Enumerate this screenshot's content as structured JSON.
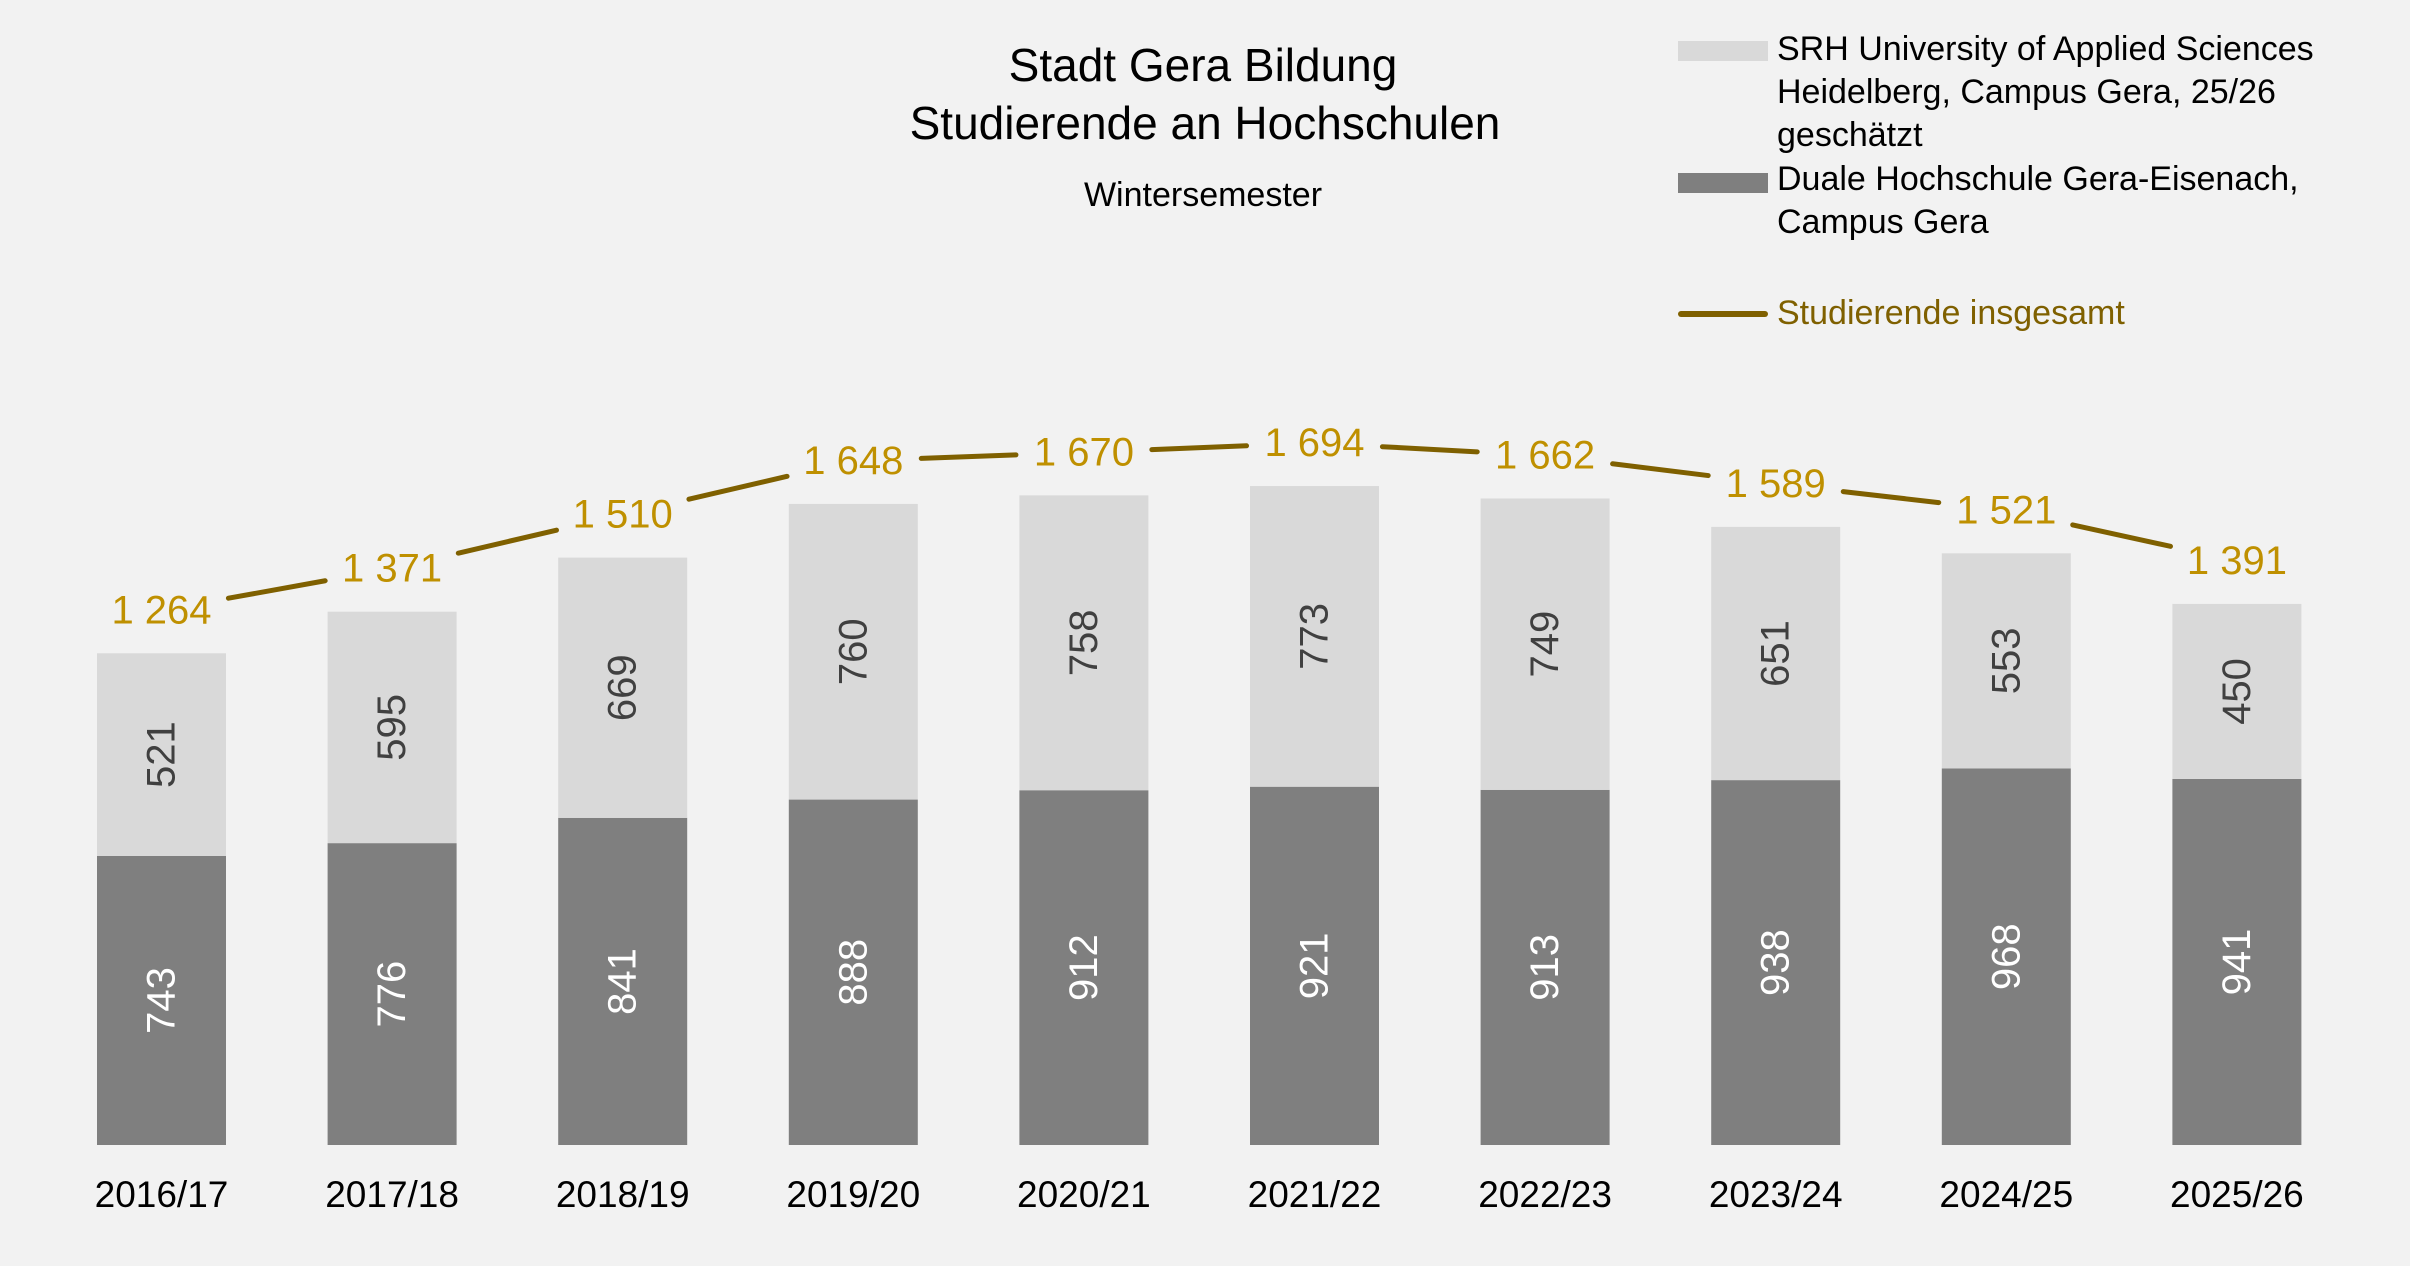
{
  "chart_data": {
    "type": "bar",
    "stacked": true,
    "title": "Stadt Gera Bildung",
    "title_line2": "Studierende an Hochschulen",
    "subtitle": "Wintersemester",
    "categories": [
      "2016/17",
      "2017/18",
      "2018/19",
      "2019/20",
      "2020/21",
      "2021/22",
      "2022/23",
      "2023/24",
      "2024/25",
      "2025/26"
    ],
    "series": [
      {
        "name": "Duale Hochschule Gera-Eisenach, Campus Gera",
        "legend_lines": [
          "Duale Hochschule Gera-Eisenach,",
          "Campus Gera"
        ],
        "color": "#7f7f7f",
        "label_color": "#ffffff",
        "values": [
          743,
          776,
          841,
          888,
          912,
          921,
          913,
          938,
          968,
          941
        ]
      },
      {
        "name": "SRH University of Applied Sciences Heidelberg, Campus Gera, 25/26 geschätzt",
        "legend_lines": [
          "SRH University of Applied Sciences",
          "Heidelberg, Campus Gera, 25/26",
          "geschätzt"
        ],
        "color": "#d9d9d9",
        "label_color": "#404040",
        "values": [
          521,
          595,
          669,
          760,
          758,
          773,
          749,
          651,
          553,
          450
        ]
      }
    ],
    "total": {
      "name": "Studierende insgesamt",
      "type": "line",
      "color": "#7f6000",
      "label_color": "#bf9000",
      "values": [
        1264,
        1371,
        1510,
        1648,
        1670,
        1694,
        1662,
        1589,
        1521,
        1391
      ],
      "labels": [
        "1 264",
        "1 371",
        "1 510",
        "1 648",
        "1 670",
        "1 694",
        "1 662",
        "1 589",
        "1 521",
        "1 391"
      ]
    },
    "ylim": [
      0,
      1800
    ],
    "grid": false,
    "y_axis_visible": false,
    "legend_position": "top-right",
    "background": "#f2f2f2"
  }
}
